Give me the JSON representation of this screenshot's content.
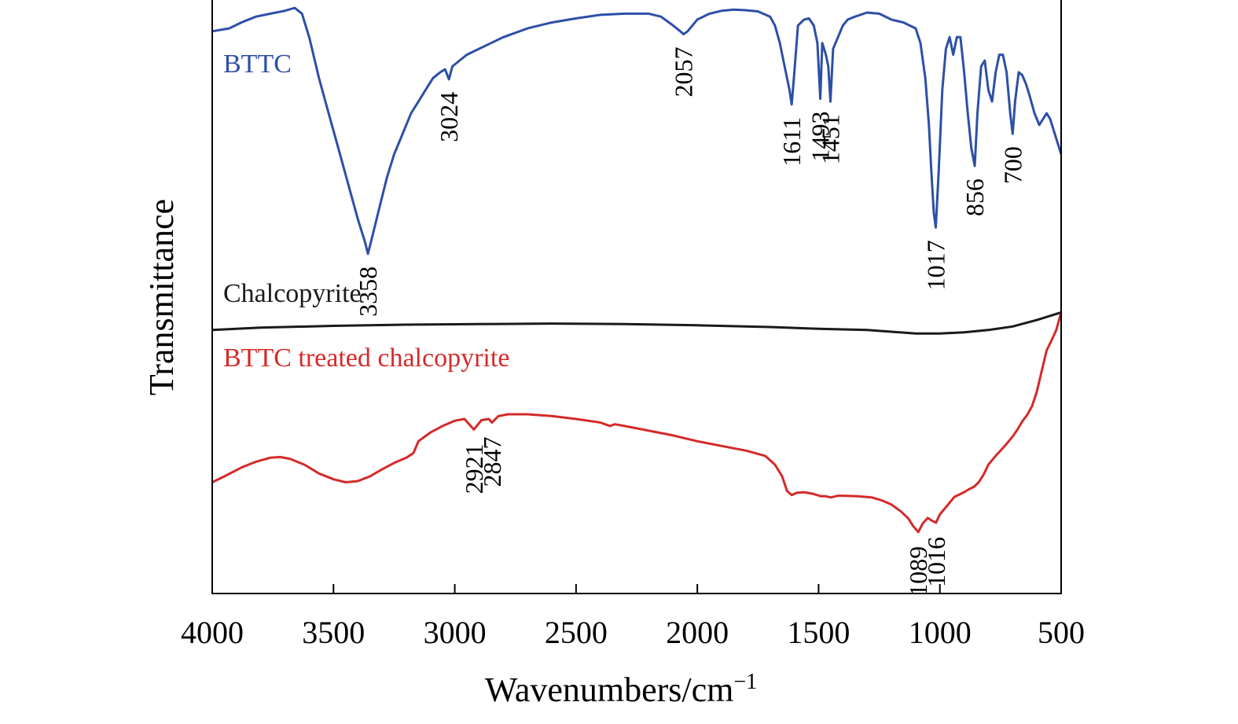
{
  "chart_data": {
    "type": "line",
    "title": "",
    "xlabel": "Wavenumbers/cm",
    "xlabel_superscript": "−1",
    "ylabel": "Transmittance",
    "xlim": [
      4000,
      500
    ],
    "x_reversed": true,
    "y_ticks_shown": false,
    "grid": false,
    "legend": "inline text labels",
    "x_ticks": [
      "4000",
      "3500",
      "3000",
      "2500",
      "2000",
      "1500",
      "1000",
      "500"
    ],
    "series": [
      {
        "name": "BTTC",
        "color": "#2e4fa8",
        "points": [
          [
            4000,
            96
          ],
          [
            3930,
            96.5
          ],
          [
            3880,
            97.5
          ],
          [
            3820,
            98.5
          ],
          [
            3760,
            99
          ],
          [
            3700,
            99.5
          ],
          [
            3660,
            100
          ],
          [
            3630,
            99
          ],
          [
            3600,
            95
          ],
          [
            3560,
            88
          ],
          [
            3520,
            82
          ],
          [
            3480,
            76
          ],
          [
            3440,
            70
          ],
          [
            3400,
            64
          ],
          [
            3370,
            60
          ],
          [
            3358,
            58
          ],
          [
            3340,
            61
          ],
          [
            3310,
            66
          ],
          [
            3280,
            71
          ],
          [
            3250,
            75
          ],
          [
            3220,
            78
          ],
          [
            3180,
            82
          ],
          [
            3150,
            84
          ],
          [
            3120,
            86
          ],
          [
            3090,
            88
          ],
          [
            3060,
            89
          ],
          [
            3040,
            89.5
          ],
          [
            3024,
            87.8
          ],
          [
            3010,
            90
          ],
          [
            2980,
            91
          ],
          [
            2950,
            92
          ],
          [
            2900,
            93
          ],
          [
            2850,
            94
          ],
          [
            2800,
            95
          ],
          [
            2700,
            96.5
          ],
          [
            2600,
            97.5
          ],
          [
            2500,
            98.2
          ],
          [
            2400,
            98.8
          ],
          [
            2300,
            99
          ],
          [
            2200,
            99
          ],
          [
            2150,
            98.5
          ],
          [
            2100,
            97
          ],
          [
            2070,
            96
          ],
          [
            2057,
            95.5
          ],
          [
            2040,
            96
          ],
          [
            2000,
            98
          ],
          [
            1950,
            99
          ],
          [
            1900,
            99.5
          ],
          [
            1850,
            99.7
          ],
          [
            1800,
            99.6
          ],
          [
            1750,
            99.4
          ],
          [
            1700,
            98.5
          ],
          [
            1680,
            97
          ],
          [
            1660,
            94
          ],
          [
            1640,
            90
          ],
          [
            1620,
            86
          ],
          [
            1611,
            83.5
          ],
          [
            1600,
            89
          ],
          [
            1585,
            97
          ],
          [
            1560,
            98
          ],
          [
            1540,
            98.2
          ],
          [
            1520,
            97
          ],
          [
            1505,
            94
          ],
          [
            1493,
            84.5
          ],
          [
            1485,
            94
          ],
          [
            1470,
            92
          ],
          [
            1460,
            90
          ],
          [
            1451,
            84
          ],
          [
            1440,
            93
          ],
          [
            1420,
            95
          ],
          [
            1400,
            97
          ],
          [
            1380,
            98
          ],
          [
            1350,
            98.5
          ],
          [
            1300,
            99.2
          ],
          [
            1250,
            99
          ],
          [
            1200,
            98
          ],
          [
            1150,
            97.5
          ],
          [
            1100,
            96.5
          ],
          [
            1080,
            94
          ],
          [
            1060,
            88
          ],
          [
            1045,
            80
          ],
          [
            1035,
            72
          ],
          [
            1025,
            65
          ],
          [
            1017,
            62.5
          ],
          [
            1005,
            72
          ],
          [
            990,
            86
          ],
          [
            975,
            93
          ],
          [
            960,
            95
          ],
          [
            945,
            92
          ],
          [
            930,
            95
          ],
          [
            915,
            95
          ],
          [
            900,
            89
          ],
          [
            885,
            82
          ],
          [
            870,
            76
          ],
          [
            856,
            73
          ],
          [
            845,
            82
          ],
          [
            830,
            90
          ],
          [
            815,
            91
          ],
          [
            800,
            86
          ],
          [
            785,
            84
          ],
          [
            770,
            89
          ],
          [
            755,
            92
          ],
          [
            740,
            92
          ],
          [
            725,
            89
          ],
          [
            710,
            82
          ],
          [
            700,
            78.5
          ],
          [
            690,
            84
          ],
          [
            675,
            89
          ],
          [
            660,
            88.5
          ],
          [
            645,
            87
          ],
          [
            630,
            85
          ],
          [
            610,
            82
          ],
          [
            590,
            80
          ],
          [
            575,
            81
          ],
          [
            560,
            82
          ],
          [
            545,
            81
          ],
          [
            530,
            79
          ],
          [
            515,
            77
          ],
          [
            500,
            75
          ]
        ],
        "annotations": [
          "3358",
          "3024",
          "2057",
          "1611",
          "1493",
          "1451",
          "1017",
          "856",
          "700"
        ]
      },
      {
        "name": "Chalcopyrite",
        "color": "#1a1a1a",
        "points": [
          [
            4000,
            45
          ],
          [
            3800,
            45.4
          ],
          [
            3500,
            45.7
          ],
          [
            3200,
            45.9
          ],
          [
            2900,
            46
          ],
          [
            2600,
            46.1
          ],
          [
            2300,
            46
          ],
          [
            2000,
            45.8
          ],
          [
            1700,
            45.5
          ],
          [
            1500,
            45.2
          ],
          [
            1300,
            45
          ],
          [
            1200,
            44.7
          ],
          [
            1100,
            44.4
          ],
          [
            1000,
            44.4
          ],
          [
            900,
            44.6
          ],
          [
            800,
            45
          ],
          [
            700,
            45.6
          ],
          [
            600,
            46.7
          ],
          [
            500,
            48
          ]
        ]
      },
      {
        "name": "BTTC treated chalcopyrite",
        "color": "#d42a2a",
        "points": [
          [
            4000,
            19
          ],
          [
            3950,
            20
          ],
          [
            3880,
            21.5
          ],
          [
            3820,
            22.5
          ],
          [
            3760,
            23.2
          ],
          [
            3720,
            23.3
          ],
          [
            3680,
            23
          ],
          [
            3620,
            22
          ],
          [
            3560,
            20.5
          ],
          [
            3500,
            19.5
          ],
          [
            3450,
            19
          ],
          [
            3400,
            19.2
          ],
          [
            3350,
            20
          ],
          [
            3300,
            21.2
          ],
          [
            3250,
            22.3
          ],
          [
            3200,
            23.2
          ],
          [
            3170,
            24
          ],
          [
            3150,
            26
          ],
          [
            3100,
            27.5
          ],
          [
            3050,
            28.6
          ],
          [
            3000,
            29.5
          ],
          [
            2960,
            29.8
          ],
          [
            2921,
            28
          ],
          [
            2890,
            29.6
          ],
          [
            2860,
            29.8
          ],
          [
            2847,
            29.2
          ],
          [
            2820,
            30.3
          ],
          [
            2780,
            30.6
          ],
          [
            2700,
            30.6
          ],
          [
            2600,
            30.3
          ],
          [
            2500,
            29.8
          ],
          [
            2400,
            29.2
          ],
          [
            2360,
            28.6
          ],
          [
            2340,
            28.9
          ],
          [
            2300,
            28.6
          ],
          [
            2200,
            27.8
          ],
          [
            2100,
            27
          ],
          [
            2000,
            26
          ],
          [
            1900,
            25.2
          ],
          [
            1800,
            24.4
          ],
          [
            1720,
            23.5
          ],
          [
            1680,
            22
          ],
          [
            1650,
            20
          ],
          [
            1630,
            17.5
          ],
          [
            1611,
            16.8
          ],
          [
            1590,
            17.2
          ],
          [
            1560,
            17.3
          ],
          [
            1520,
            17
          ],
          [
            1490,
            16.6
          ],
          [
            1470,
            16.6
          ],
          [
            1450,
            16.4
          ],
          [
            1420,
            16.7
          ],
          [
            1400,
            16.7
          ],
          [
            1340,
            16.6
          ],
          [
            1280,
            16.4
          ],
          [
            1240,
            15.9
          ],
          [
            1200,
            15.2
          ],
          [
            1160,
            14
          ],
          [
            1130,
            12.8
          ],
          [
            1110,
            11.5
          ],
          [
            1089,
            10.5
          ],
          [
            1070,
            12
          ],
          [
            1050,
            12.9
          ],
          [
            1035,
            12.5
          ],
          [
            1016,
            12.1
          ],
          [
            1000,
            13.5
          ],
          [
            980,
            14.5
          ],
          [
            960,
            15.5
          ],
          [
            940,
            16.5
          ],
          [
            900,
            17.3
          ],
          [
            880,
            17.8
          ],
          [
            860,
            18.2
          ],
          [
            840,
            19
          ],
          [
            820,
            20.3
          ],
          [
            800,
            22
          ],
          [
            770,
            23.5
          ],
          [
            730,
            25.3
          ],
          [
            700,
            26.8
          ],
          [
            680,
            28
          ],
          [
            660,
            29.4
          ],
          [
            640,
            30.5
          ],
          [
            620,
            32
          ],
          [
            600,
            34.5
          ],
          [
            580,
            38
          ],
          [
            560,
            41.5
          ],
          [
            540,
            43.2
          ],
          [
            520,
            45
          ],
          [
            500,
            48
          ]
        ],
        "annotations": [
          "2921",
          "2847",
          "1089",
          "1016"
        ]
      }
    ]
  }
}
